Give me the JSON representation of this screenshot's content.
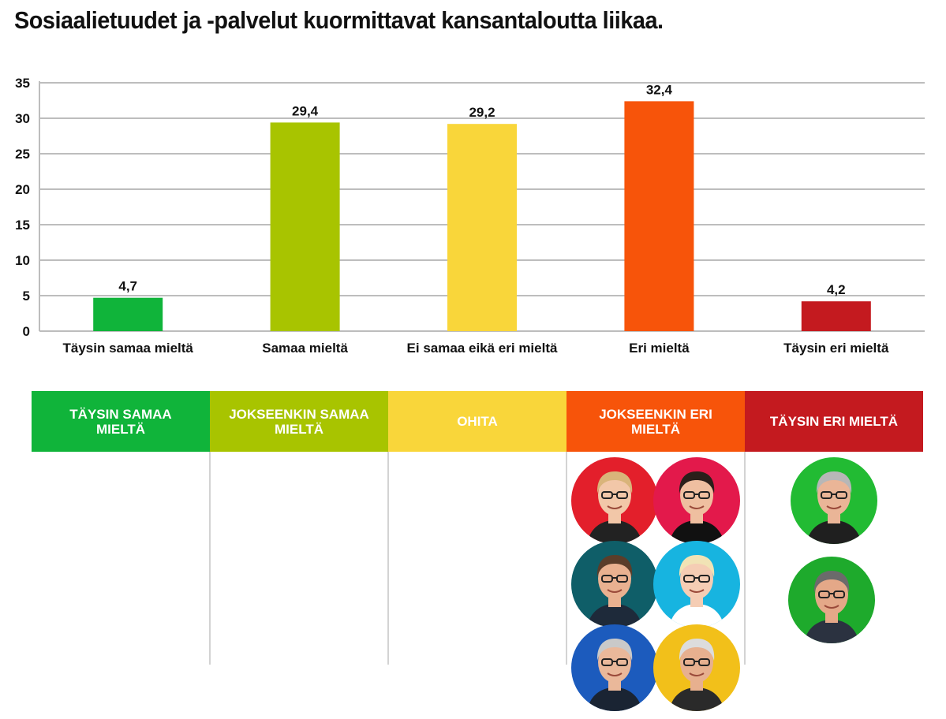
{
  "title": "Sosiaalietuudet ja -palvelut kuormittavat kansantaloutta liikaa.",
  "chart_data": {
    "type": "bar",
    "title": "Sosiaalietuudet ja -palvelut kuormittavat kansantaloutta liikaa.",
    "categories": [
      "Täysin samaa mieltä",
      "Samaa mieltä",
      "Ei samaa eikä eri mieltä",
      "Eri mieltä",
      "Täysin eri mieltä"
    ],
    "values": [
      4.7,
      29.4,
      29.2,
      32.4,
      4.2
    ],
    "value_labels": [
      "4,7",
      "29,4",
      "29,2",
      "32,4",
      "4,2"
    ],
    "colors": [
      "#10b43a",
      "#a8c400",
      "#f9d63a",
      "#f7540a",
      "#c41a1f"
    ],
    "xlabel": "",
    "ylabel": "",
    "ylim": [
      0,
      35
    ],
    "yticks": [
      0,
      5,
      10,
      15,
      20,
      25,
      30,
      35
    ],
    "grid": true
  },
  "answer_columns": [
    {
      "label": "Täysin samaa mieltä",
      "color": "#10b43a",
      "people": []
    },
    {
      "label": "Jokseenkin samaa mieltä",
      "color": "#a8c400",
      "people": []
    },
    {
      "label": "Ohita",
      "color": "#f9d63a",
      "people": []
    },
    {
      "label": "Jokseenkin eri mieltä",
      "color": "#f7540a",
      "people": [
        {
          "bg": "#e31f2b",
          "hair": "#d9b47a",
          "skin": "#f2c7a8",
          "shirt": "#222222"
        },
        {
          "bg": "#e3194b",
          "hair": "#2a1f1a",
          "skin": "#efbfa0",
          "shirt": "#111111"
        },
        {
          "bg": "#0f5e68",
          "hair": "#5a3d2a",
          "skin": "#e9b190",
          "shirt": "#1e2a3a"
        },
        {
          "bg": "#17b4e0",
          "hair": "#f1e3b5",
          "skin": "#f5cdb4",
          "shirt": "#ffffff"
        },
        {
          "bg": "#1c5bbd",
          "hair": "#c9c9c9",
          "skin": "#eab89a",
          "shirt": "#1a2433"
        },
        {
          "bg": "#f2c01a",
          "hair": "#dcdcdc",
          "skin": "#e7b08f",
          "shirt": "#2a2a2a"
        }
      ]
    },
    {
      "label": "Täysin eri mieltä",
      "color": "#c41a1f",
      "people": [
        {
          "bg": "#22bb33",
          "hair": "#b7b7b7",
          "skin": "#eab597",
          "shirt": "#1f1f1f"
        },
        {
          "bg": "#1eaa2c",
          "hair": "#6b6b6b",
          "skin": "#e4a888",
          "shirt": "#2b3240"
        }
      ]
    }
  ]
}
